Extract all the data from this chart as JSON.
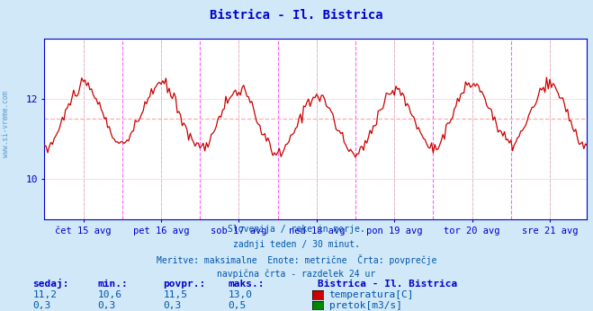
{
  "title": "Bistrica - Il. Bistrica",
  "title_color": "#0000cc",
  "bg_color": "#d0e8f8",
  "plot_bg_color": "#ffffff",
  "grid_color": "#ffcccc",
  "x_labels": [
    "čet 15 avg",
    "pet 16 avg",
    "sob 17 avg",
    "ned 18 avg",
    "pon 19 avg",
    "tor 20 avg",
    "sre 21 avg"
  ],
  "y_ticks": [
    10,
    12
  ],
  "y_min": 9.0,
  "y_max": 13.5,
  "avg_line_value": 11.5,
  "avg_line_color": "#ffaaaa",
  "temp_line_color": "#cc0000",
  "flow_line_color": "#008800",
  "axis_color": "#0000cc",
  "vline_magenta_color": "#ff44ff",
  "vline_dark_color": "#4444aa",
  "subtitle_lines": [
    "Slovenija / reke in morje.",
    "zadnji teden / 30 minut.",
    "Meritve: maksimalne  Enote: metrične  Črta: povprečje",
    "navpična črta - razdelek 24 ur"
  ],
  "subtitle_color": "#0055aa",
  "table_headers": [
    "sedaj:",
    "min.:",
    "povpr.:",
    "maks.:"
  ],
  "table_row1": [
    "11,2",
    "10,6",
    "11,5",
    "13,0"
  ],
  "table_row2": [
    "0,3",
    "0,3",
    "0,3",
    "0,5"
  ],
  "legend_title": "Bistrica - Il. Bistrica",
  "legend_items": [
    "temperatura[C]",
    "pretok[m3/s]"
  ],
  "legend_colors": [
    "#cc0000",
    "#008800"
  ],
  "n_points": 336,
  "temp_avg": 11.5,
  "flow_base": 0.3
}
